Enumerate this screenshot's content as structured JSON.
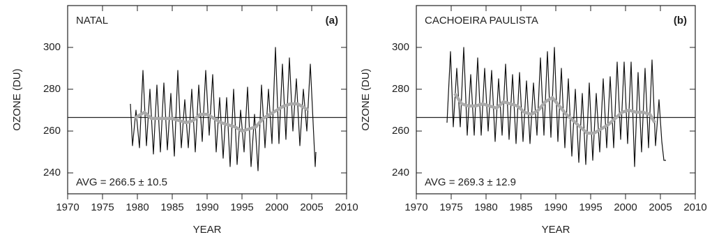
{
  "chart_data": [
    {
      "type": "line",
      "title": "NATAL",
      "label": "(a)",
      "annotation": "AVG = 266.5 ± 10.5",
      "x_label": "YEAR",
      "y_label": "OZONE (DU)",
      "xlim": [
        1970,
        2010
      ],
      "xticks": [
        1970,
        1975,
        1980,
        1985,
        1990,
        1995,
        2000,
        2005,
        2010
      ],
      "ylim": [
        230,
        320
      ],
      "yticks": [
        240,
        260,
        280,
        300
      ],
      "hline": 266.5,
      "series": [
        {
          "color": "#111111",
          "x": [
            1979.0,
            1979.3,
            1979.8,
            1980.3,
            1980.8,
            1981.3,
            1981.8,
            1982.3,
            1982.8,
            1983.3,
            1983.8,
            1984.3,
            1984.8,
            1985.3,
            1985.8,
            1986.3,
            1986.8,
            1987.3,
            1987.8,
            1988.3,
            1988.8,
            1989.3,
            1989.8,
            1990.3,
            1990.8,
            1991.3,
            1991.8,
            1992.3,
            1992.8,
            1993.3,
            1993.8,
            1994.3,
            1994.8,
            1995.3,
            1995.8,
            1996.3,
            1996.8,
            1997.3,
            1997.8,
            1998.3,
            1998.8,
            1999.3,
            1999.8,
            2000.3,
            2000.8,
            2001.3,
            2001.8,
            2002.3,
            2002.8,
            2003.3,
            2003.8,
            2004.3,
            2004.8,
            2005.5,
            2005.6
          ],
          "values": [
            273,
            253,
            270,
            252,
            289,
            253,
            280,
            249,
            282,
            250,
            283,
            251,
            278,
            248,
            289,
            252,
            275,
            252,
            280,
            250,
            282,
            255,
            289,
            258,
            287,
            250,
            276,
            247,
            276,
            243,
            280,
            244,
            270,
            250,
            281,
            243,
            268,
            241,
            282,
            252,
            280,
            254,
            300,
            254,
            292,
            256,
            295,
            260,
            285,
            253,
            280,
            260,
            292,
            243,
            250
          ]
        },
        {
          "color": "#aaaaaa",
          "x": [
            1979.7,
            1980,
            1981,
            1982,
            1983,
            1984,
            1985,
            1986,
            1987,
            1988,
            1989,
            1990,
            1991,
            1992,
            1993,
            1994,
            1995,
            1996,
            1997,
            1998,
            1999,
            2000,
            2001,
            2002,
            2003,
            2004,
            2004.5
          ],
          "values": [
            266,
            267,
            269,
            266,
            266,
            266,
            266,
            265,
            264,
            265,
            268,
            268,
            266,
            264,
            263,
            262,
            260,
            261,
            262,
            266,
            268,
            270,
            272,
            273,
            273,
            271,
            270
          ]
        }
      ]
    },
    {
      "type": "line",
      "title": "CACHOEIRA PAULISTA",
      "label": "(b)",
      "annotation": "AVG = 269.3 ± 12.9",
      "x_label": "YEAR",
      "y_label": "OZONE (DU)",
      "xlim": [
        1970,
        2010
      ],
      "xticks": [
        1970,
        1975,
        1980,
        1985,
        1990,
        1995,
        2000,
        2005,
        2010
      ],
      "ylim": [
        230,
        320
      ],
      "yticks": [
        240,
        260,
        280,
        300
      ],
      "hline": 266.5,
      "series": [
        {
          "color": "#111111",
          "x": [
            1974.4,
            1974.9,
            1975.3,
            1975.8,
            1976.3,
            1976.8,
            1977.3,
            1977.8,
            1978.3,
            1978.8,
            1979.3,
            1979.8,
            1980.3,
            1980.8,
            1981.3,
            1981.8,
            1982.3,
            1982.8,
            1983.3,
            1983.8,
            1984.3,
            1984.8,
            1985.3,
            1985.8,
            1986.3,
            1986.8,
            1987.3,
            1987.8,
            1988.3,
            1988.8,
            1989.3,
            1989.8,
            1990.3,
            1990.8,
            1991.3,
            1991.8,
            1992.3,
            1992.8,
            1993.3,
            1993.8,
            1994.3,
            1994.8,
            1995.3,
            1995.8,
            1996.3,
            1996.8,
            1997.3,
            1997.8,
            1998.3,
            1998.8,
            1999.3,
            1999.8,
            2000.3,
            2000.8,
            2001.3,
            2001.8,
            2002.3,
            2002.8,
            2003.3,
            2003.8,
            2004.3,
            2004.8,
            2005.2,
            2005.5,
            2005.8
          ],
          "values": [
            264,
            298,
            262,
            290,
            262,
            300,
            258,
            287,
            258,
            295,
            258,
            290,
            260,
            289,
            255,
            285,
            258,
            292,
            256,
            287,
            254,
            288,
            255,
            284,
            254,
            283,
            258,
            295,
            258,
            298,
            257,
            300,
            255,
            290,
            252,
            285,
            248,
            280,
            245,
            278,
            244,
            283,
            246,
            278,
            250,
            285,
            252,
            286,
            252,
            293,
            256,
            293,
            254,
            293,
            243,
            288,
            250,
            290,
            252,
            294,
            253,
            275,
            255,
            246,
            246
          ]
        },
        {
          "color": "#aaaaaa",
          "x": [
            1975.5,
            1976.5,
            1977.5,
            1978.5,
            1979.5,
            1980.5,
            1981.5,
            1982.5,
            1983.5,
            1984.5,
            1985.5,
            1986.5,
            1987.5,
            1988.5,
            1989.5,
            1990.5,
            1991.5,
            1992.5,
            1993.5,
            1994.5,
            1995.5,
            1996.5,
            1997.5,
            1998.5,
            1999.5,
            2000.5,
            2001.5,
            2002.5,
            2003.5,
            2004.2
          ],
          "values": [
            278,
            273,
            272,
            272,
            273,
            272,
            271,
            274,
            273,
            272,
            269,
            268,
            270,
            274,
            276,
            272,
            268,
            265,
            262,
            259,
            259,
            261,
            263,
            266,
            269,
            270,
            269,
            269,
            268,
            264
          ]
        }
      ]
    }
  ]
}
